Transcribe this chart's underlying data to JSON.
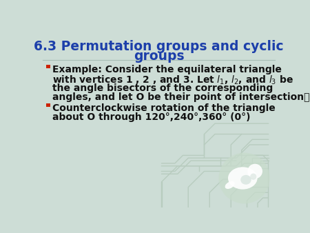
{
  "title_line1": "6.3 Permutation groups and cyclic",
  "title_line2": "groups",
  "title_color": "#1c3faa",
  "bg_color": "#cdddd6",
  "bullet_color": "#cc2200",
  "text_color": "#111111",
  "font_size_title": 13.5,
  "font_size_body": 10.0,
  "bullet1_line1": "Example: Consider the equilateral triangle",
  "bullet1_line2a": "with vertices 1 , 2 , and 3. Let ",
  "bullet1_line2b": ", ",
  "bullet1_line2c": ", and ",
  "bullet1_line2d": " be",
  "bullet1_line3": "the angle bisectors of the corresponding",
  "bullet1_line4": "angles, and let O be their point of intersection。",
  "bullet2_line1": "Counterclockwise rotation of the triangle",
  "bullet2_line2": "about O through 120°,240°,360° (0°)",
  "circuit_color": "#b8ccbf",
  "dragon_circle_color": "#c0d4ca"
}
